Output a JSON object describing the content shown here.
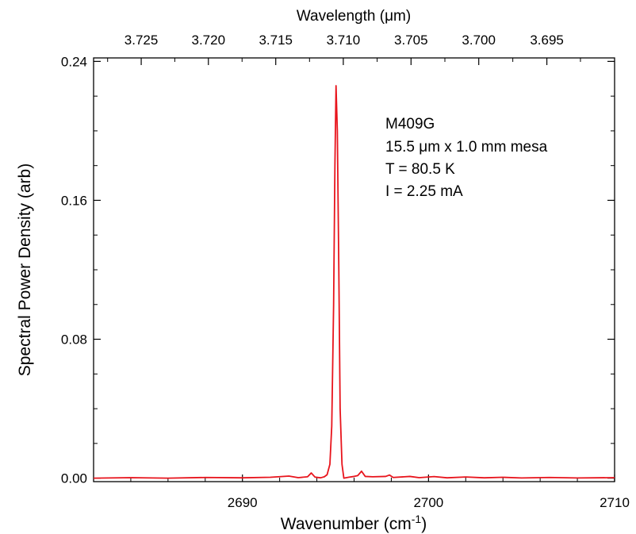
{
  "chart_data": {
    "type": "line",
    "title": "",
    "xlabel": "Wavenumber (cm",
    "xlabel_sup": "-1",
    "xlabel_close": ")",
    "ylabel": "Spectral Power Density (arb)",
    "top_xlabel": "Wavelength (μm)",
    "xlim": [
      2682,
      2710
    ],
    "ylim": [
      -0.002,
      0.242
    ],
    "grid": false,
    "x_ticks": [
      {
        "value": 2690,
        "label": "2690"
      },
      {
        "value": 2700,
        "label": "2700"
      },
      {
        "value": 2710,
        "label": "2710"
      }
    ],
    "y_ticks": [
      {
        "value": 0.0,
        "label": "0.00"
      },
      {
        "value": 0.08,
        "label": "0.08"
      },
      {
        "value": 0.16,
        "label": "0.16"
      },
      {
        "value": 0.24,
        "label": "0.24"
      }
    ],
    "top_ticks": [
      {
        "label": "3.725",
        "wavenumber": 2684.56
      },
      {
        "label": "3.720",
        "wavenumber": 2688.17
      },
      {
        "label": "3.715",
        "wavenumber": 2691.79
      },
      {
        "label": "3.710",
        "wavenumber": 2695.42
      },
      {
        "label": "3.705",
        "wavenumber": 2699.06
      },
      {
        "label": "3.700",
        "wavenumber": 2702.7
      },
      {
        "label": "3.695",
        "wavenumber": 2706.36
      }
    ],
    "annotations": [
      "M409G",
      "15.5 μm x 1.0 mm mesa",
      "T = 80.5 K",
      "I = 2.25 mA"
    ],
    "series": [
      {
        "color": "#e8141c",
        "points": [
          [
            2682.0,
            0.0
          ],
          [
            2684.0,
            0.0003
          ],
          [
            2686.0,
            0.0
          ],
          [
            2688.0,
            0.0004
          ],
          [
            2690.0,
            0.0002
          ],
          [
            2691.5,
            0.0005
          ],
          [
            2692.5,
            0.0012
          ],
          [
            2693.0,
            0.0003
          ],
          [
            2693.5,
            0.0008
          ],
          [
            2693.7,
            0.003
          ],
          [
            2693.9,
            0.0006
          ],
          [
            2694.2,
            0.0002
          ],
          [
            2694.4,
            0.0008
          ],
          [
            2694.55,
            0.002
          ],
          [
            2694.7,
            0.008
          ],
          [
            2694.8,
            0.03
          ],
          [
            2694.9,
            0.1
          ],
          [
            2694.97,
            0.18
          ],
          [
            2695.03,
            0.226
          ],
          [
            2695.1,
            0.2
          ],
          [
            2695.18,
            0.12
          ],
          [
            2695.25,
            0.04
          ],
          [
            2695.35,
            0.008
          ],
          [
            2695.45,
            0.0
          ],
          [
            2695.7,
            0.0005
          ],
          [
            2696.0,
            0.001
          ],
          [
            2696.2,
            0.0015
          ],
          [
            2696.4,
            0.004
          ],
          [
            2696.6,
            0.001
          ],
          [
            2697.0,
            0.0008
          ],
          [
            2697.7,
            0.001
          ],
          [
            2697.9,
            0.0018
          ],
          [
            2698.1,
            0.0004
          ],
          [
            2699.0,
            0.001
          ],
          [
            2699.5,
            0.0003
          ],
          [
            2700.3,
            0.0009
          ],
          [
            2701.0,
            0.0002
          ],
          [
            2702.0,
            0.0007
          ],
          [
            2703.0,
            0.0002
          ],
          [
            2704.0,
            0.0005
          ],
          [
            2705.0,
            0.0001
          ],
          [
            2706.5,
            0.0004
          ],
          [
            2708.0,
            0.0001
          ],
          [
            2710.0,
            0.0003
          ]
        ]
      }
    ]
  }
}
